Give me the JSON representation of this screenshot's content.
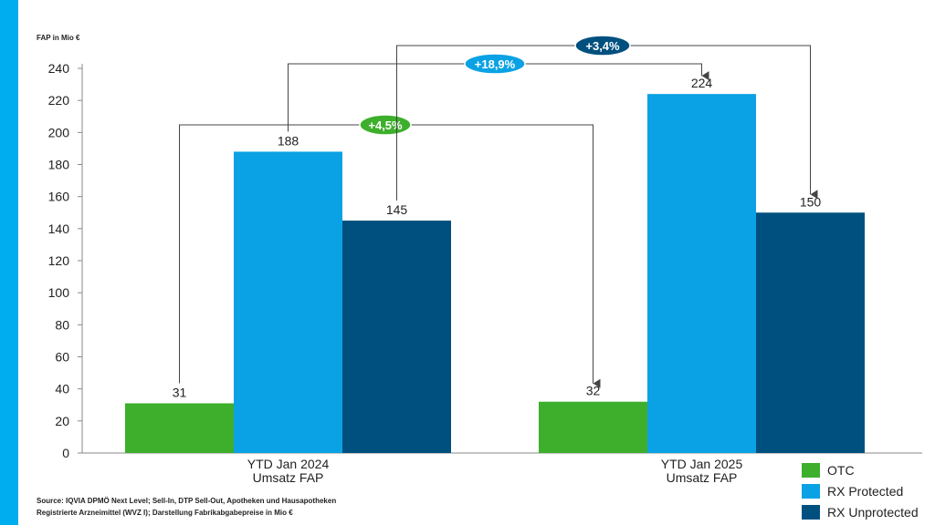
{
  "colors": {
    "otc": "#3daf2c",
    "rx_protected": "#0aa2e4",
    "rx_unprotected": "#00507f",
    "sidebar": "#00aeef"
  },
  "chart_data": {
    "type": "bar",
    "ylabel": "FAP in Mio €",
    "ylim": [
      0,
      240
    ],
    "yticks": [
      0,
      20,
      40,
      60,
      80,
      100,
      120,
      140,
      160,
      180,
      200,
      220,
      240
    ],
    "categories": [
      [
        "YTD Jan 2024",
        "Umsatz FAP"
      ],
      [
        "YTD Jan 2025",
        "Umsatz FAP"
      ]
    ],
    "series": [
      {
        "name": "OTC",
        "values": [
          31,
          32
        ],
        "labels": [
          "31",
          "32"
        ]
      },
      {
        "name": "RX Protected",
        "values": [
          188,
          224
        ],
        "labels": [
          "188",
          "224"
        ]
      },
      {
        "name": "RX Unprotected",
        "values": [
          145,
          150
        ],
        "labels": [
          "145",
          "150"
        ]
      }
    ],
    "annotations": [
      {
        "text": "+4,5%",
        "series": "OTC"
      },
      {
        "text": "+18,9%",
        "series": "RX Protected"
      },
      {
        "text": "+3,4%",
        "series": "RX Unprotected"
      }
    ],
    "legend_position": "bottom-right",
    "grid": false
  },
  "source": {
    "line1": "Source: IQVIA DPMÖ Next Level; Sell-In, DTP Sell-Out, Apotheken und Hausapotheken",
    "line2": "Registrierte Arzneimittel (WVZ I); Darstellung Fabrikabgabepreise in Mio €"
  }
}
